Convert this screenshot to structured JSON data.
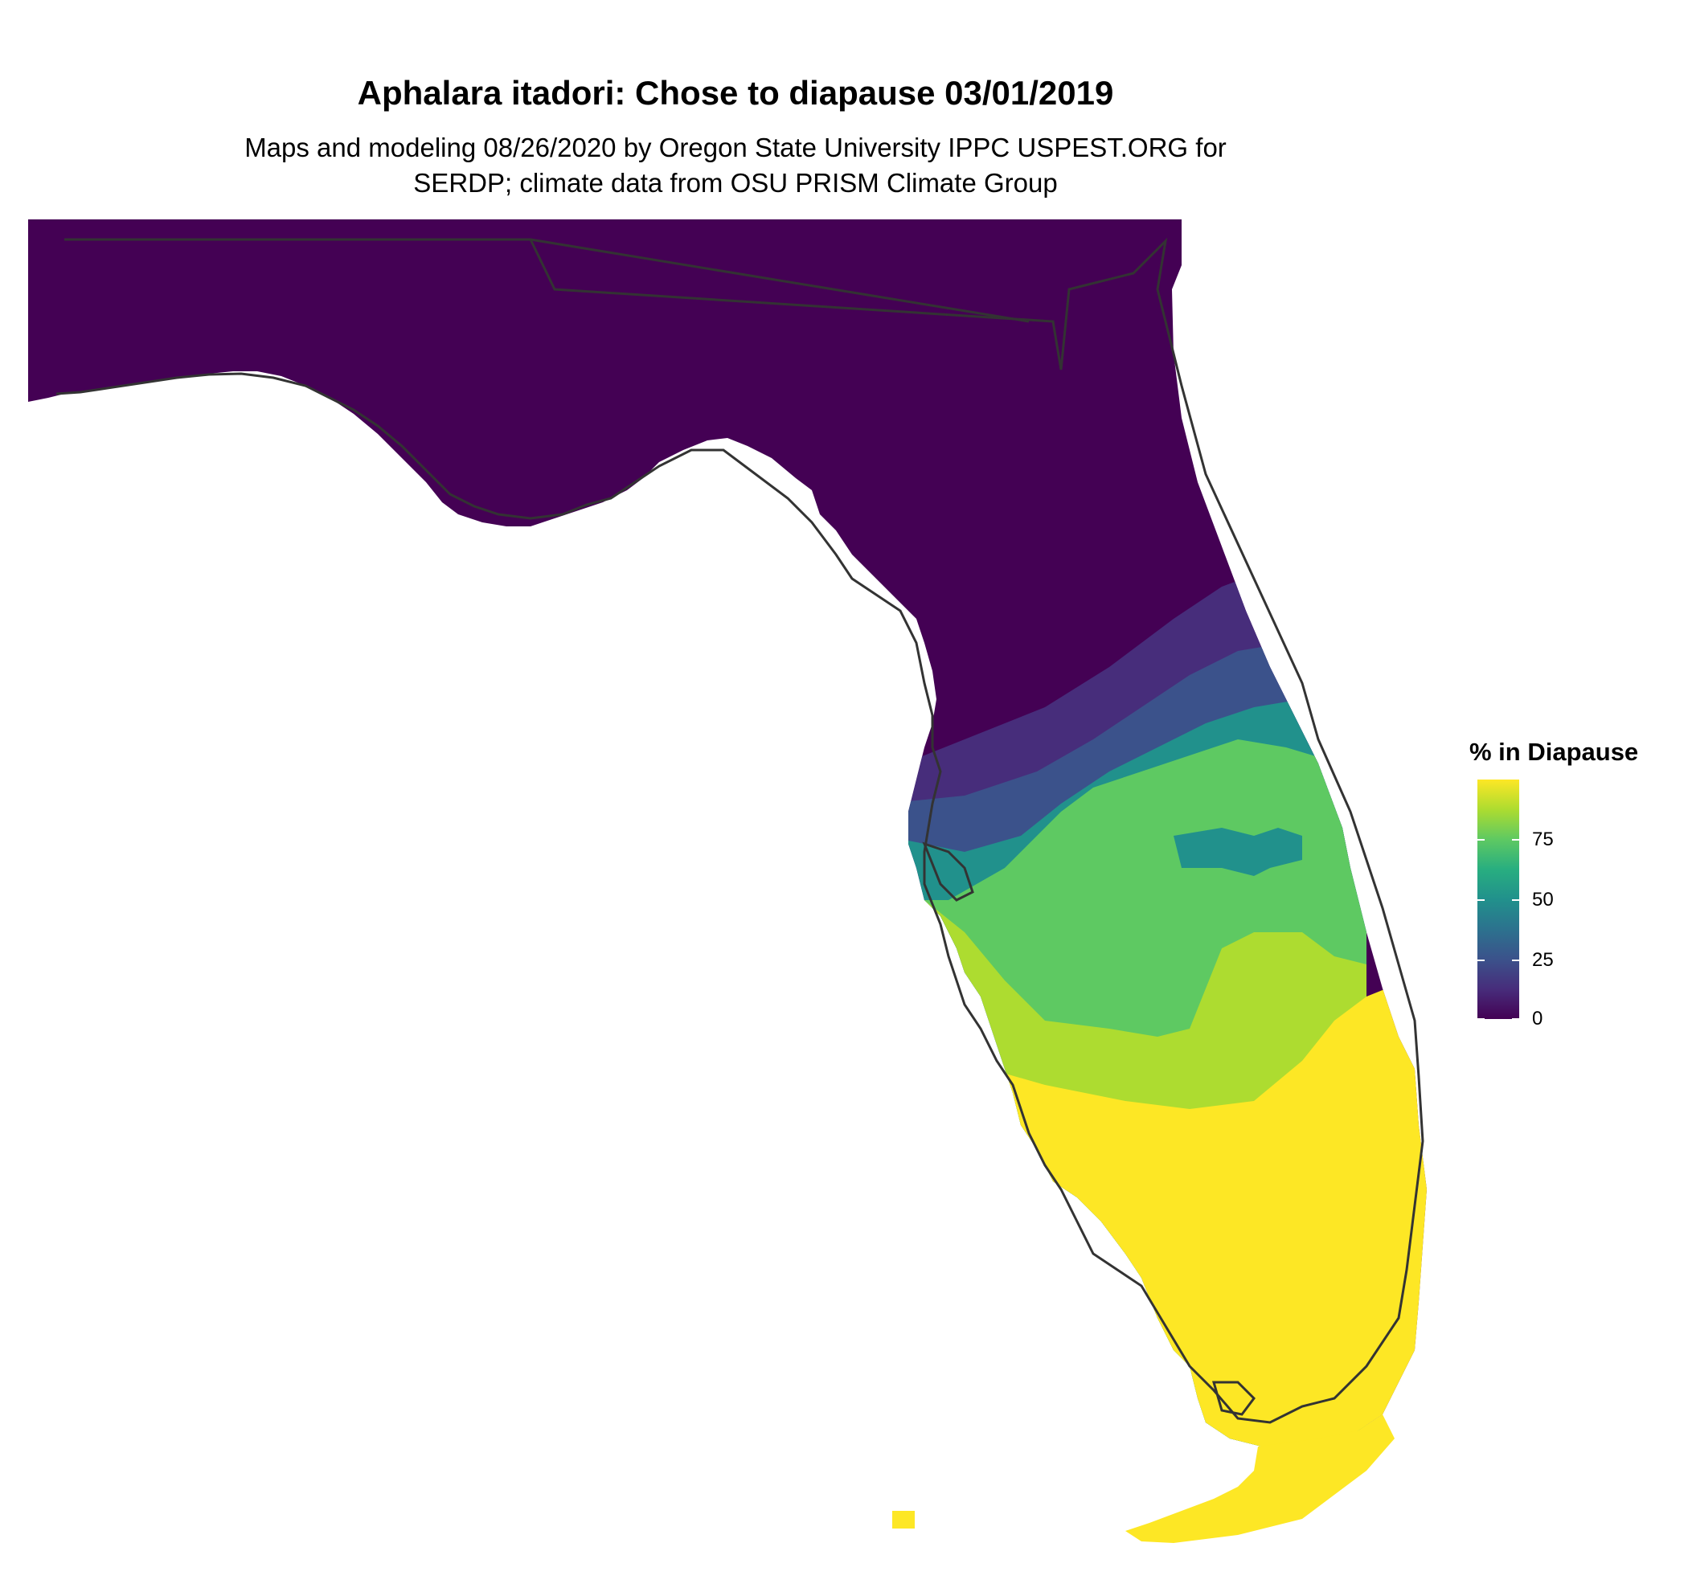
{
  "title": "Aphalara itadori: Chose to diapause 03/01/2019",
  "subtitle_lines": [
    "Maps and modeling 08/26/2020 by Oregon State University IPPC USPEST.ORG for",
    "SERDP; climate data from OSU PRISM Climate Group"
  ],
  "legend": {
    "title": "% in Diapause",
    "ticks": [
      {
        "value": 0,
        "label": "0"
      },
      {
        "value": 25,
        "label": "25"
      },
      {
        "value": 50,
        "label": "50"
      },
      {
        "value": 75,
        "label": "75"
      }
    ],
    "range": [
      0,
      100
    ]
  },
  "map": {
    "region": "Florida",
    "colorscale": "viridis",
    "colors": {
      "zone_0": "#440154",
      "zone_10": "#472d7b",
      "zone_30": "#3b528b",
      "zone_50": "#21918c",
      "zone_65": "#2cae85",
      "zone_70": "#5ec962",
      "zone_85": "#addc30",
      "zone_100": "#fde725",
      "outline": "#333333",
      "background": "#ffffff"
    },
    "zones": [
      {
        "name": "north",
        "value": 0
      },
      {
        "name": "north-central",
        "value": 10
      },
      {
        "name": "central-blue",
        "value": 30
      },
      {
        "name": "central-teal",
        "value": 50
      },
      {
        "name": "central-green",
        "value": 70
      },
      {
        "name": "south-central",
        "value": 85
      },
      {
        "name": "south",
        "value": 100
      }
    ]
  }
}
